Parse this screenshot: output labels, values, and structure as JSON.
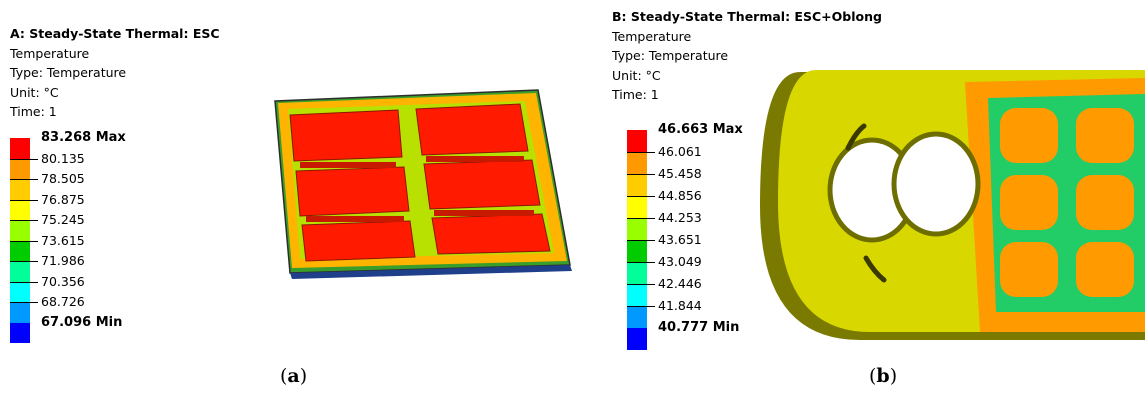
{
  "colors": [
    "#ff0000",
    "#ff9900",
    "#ffcc00",
    "#ffff00",
    "#99ff00",
    "#00cc00",
    "#00ff99",
    "#00ffff",
    "#0099ff",
    "#0000ff"
  ],
  "panel_a": {
    "title": "A: Steady-State Thermal: ESC",
    "quantity": "Temperature",
    "type": "Type: Temperature",
    "unit": "Unit: °C",
    "time": "Time: 1",
    "legend": [
      "83.268 Max",
      "80.135",
      "78.505",
      "76.875",
      "75.245",
      "73.615",
      "71.986",
      "70.356",
      "68.726",
      "67.096 Min"
    ],
    "caption_letter": "a"
  },
  "panel_b": {
    "title": "B: Steady-State Thermal: ESC+Oblong",
    "quantity": "Temperature",
    "type": "Type: Temperature",
    "unit": "Unit: °C",
    "time": "Time: 1",
    "legend": [
      "46.663 Max",
      "46.061",
      "45.458",
      "44.856",
      "44.253",
      "43.651",
      "43.049",
      "42.446",
      "41.844",
      "40.777 Min"
    ],
    "caption_letter": "b"
  }
}
